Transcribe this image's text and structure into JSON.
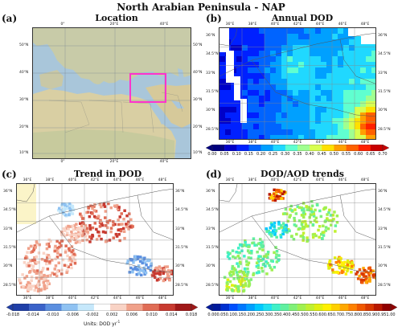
{
  "title": "North Arabian Peninsula - NAP",
  "panels": {
    "a": {
      "letter": "(a)",
      "title": "Location",
      "lon_ticks_top": [
        "0°",
        "20°E",
        "40°E"
      ],
      "lon_ticks_bottom": [
        "0°",
        "20°E",
        "40°E"
      ],
      "lat_ticks_left": [
        "50°N",
        "40°N",
        "30°N",
        "20°N",
        "10°N"
      ],
      "lat_ticks_right": [
        "50°N",
        "40°N",
        "30°N",
        "20°N",
        "10°N"
      ]
    },
    "b": {
      "letter": "(b)",
      "title": "Annual DOD"
    },
    "c": {
      "letter": "(c)",
      "title": "Trend in DOD"
    },
    "d": {
      "letter": "(d)",
      "title": "DOD/AOD trends"
    }
  },
  "map_ticks": {
    "lon": [
      "36°E",
      "38°E",
      "40°E",
      "42°E",
      "44°E",
      "46°E",
      "48°E"
    ],
    "lat_left": [
      "36°N",
      "34.5°N",
      "33°N",
      "31.5°N",
      "30°N",
      "28.5°N"
    ],
    "lat_right": [
      "36°N",
      "34.5°N",
      "33°N",
      "31.5°N",
      "30°N",
      "28.5°N"
    ]
  },
  "colorbars": {
    "b": {
      "labels": [
        "0.00",
        "0.05",
        "0.10",
        "0.15",
        "0.20",
        "0.25",
        "0.30",
        "0.35",
        "0.40",
        "0.45",
        "0.50",
        "0.55",
        "0.60",
        "0.65",
        "0.70"
      ],
      "colors": [
        "#00007f",
        "#0000c8",
        "#0020ff",
        "#0064ff",
        "#00a0ff",
        "#20d8ff",
        "#60ffd0",
        "#a0ff90",
        "#d8ff50",
        "#ffe000",
        "#ffa000",
        "#ff6000",
        "#ff2000",
        "#c80000"
      ]
    },
    "c": {
      "labels": [
        "-0.018",
        "-0.014",
        "-0.010",
        "-0.006",
        "-0.002",
        "0.002",
        "0.006",
        "0.010",
        "0.014",
        "0.018"
      ],
      "units": "Units: DOD yr",
      "units_exp": "-1",
      "colors": [
        "#1f3fa8",
        "#3a62c9",
        "#5b8fe0",
        "#8fc2f2",
        "#c6e8fb",
        "#ffffff",
        "#f9d3c5",
        "#f0a18a",
        "#e06c55",
        "#c83a30",
        "#a01818"
      ]
    },
    "d": {
      "labels": [
        "0.00",
        "0.05",
        "0.10",
        "0.15",
        "0.20",
        "0.25",
        "0.30",
        "0.35",
        "0.40",
        "0.45",
        "0.50",
        "0.55",
        "0.60",
        "0.65",
        "0.70",
        "0.75",
        "0.80",
        "0.85",
        "0.90",
        "0.95",
        "1.00"
      ],
      "colors": [
        "#001a9c",
        "#0030d0",
        "#0050ff",
        "#0078ff",
        "#00a0ff",
        "#00c8ff",
        "#20e0f0",
        "#40f0c8",
        "#60f0a0",
        "#80f078",
        "#a0f050",
        "#c0f030",
        "#e0f010",
        "#fff000",
        "#ffd000",
        "#ffa800",
        "#ff8000",
        "#f05800",
        "#d83800",
        "#b81800",
        "#900000"
      ]
    }
  }
}
